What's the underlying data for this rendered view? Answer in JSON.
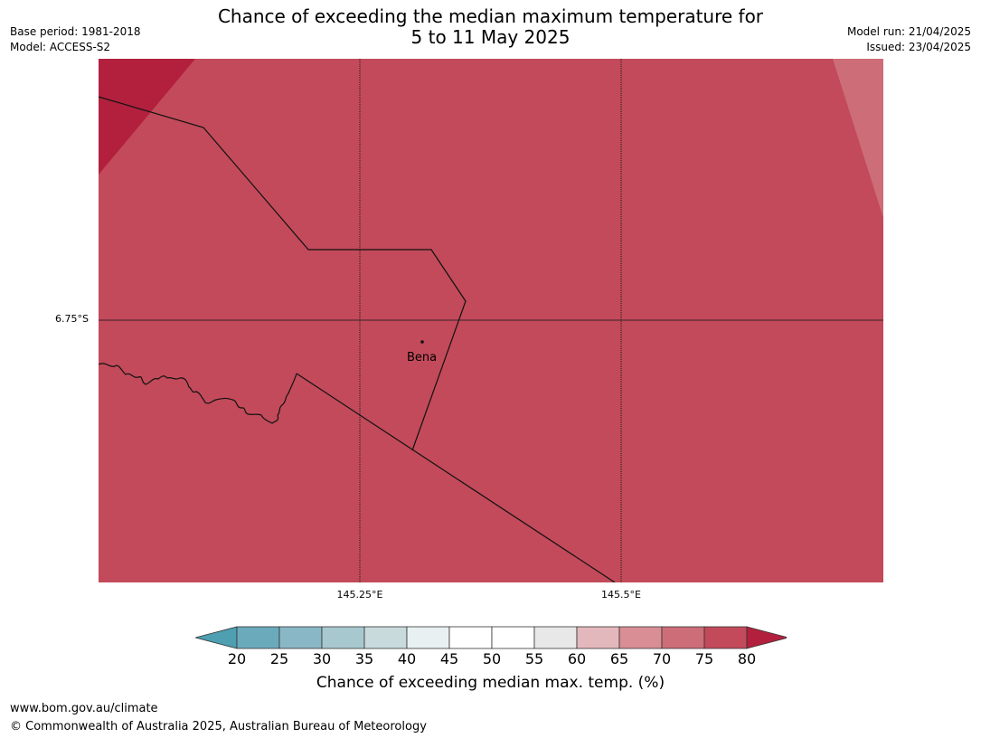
{
  "title": {
    "line1": "Chance of exceeding the median maximum temperature for",
    "line2": "5 to 11 May 2025"
  },
  "meta": {
    "base_period": "Base period: 1981-2018",
    "model": "Model: ACCESS-S2",
    "model_run": "Model run: 21/04/2025",
    "issued": "Issued: 23/04/2025"
  },
  "map": {
    "latitude_labels": [
      "6.75°S"
    ],
    "longitude_labels": [
      "145.25°E",
      "145.5°E"
    ],
    "places": [
      {
        "name": "Bena"
      }
    ],
    "fill_colors": {
      "above_80": "#b2203d",
      "70_75": "#c94a5c",
      "75_80": "#c24a5a",
      "65_70": "#cd6d77"
    }
  },
  "colorbar": {
    "label": "Chance of exceeding median max. temp. (%)",
    "ticks": [
      "20",
      "25",
      "30",
      "35",
      "40",
      "45",
      "50",
      "55",
      "60",
      "65",
      "70",
      "75",
      "80"
    ],
    "colors": [
      "#4d9fb1",
      "#6aaabb",
      "#8ab7c5",
      "#a8c8cf",
      "#c9dadd",
      "#e8f0f2",
      "#ffffff",
      "#ffffff",
      "#e8e8e8",
      "#e3b8bc",
      "#d98e96",
      "#cd6d77",
      "#c24a5a",
      "#b2203d"
    ]
  },
  "footer": {
    "url": "www.bom.gov.au/climate",
    "copyright": "© Commonwealth of Australia 2025, Australian Bureau of Meteorology"
  }
}
